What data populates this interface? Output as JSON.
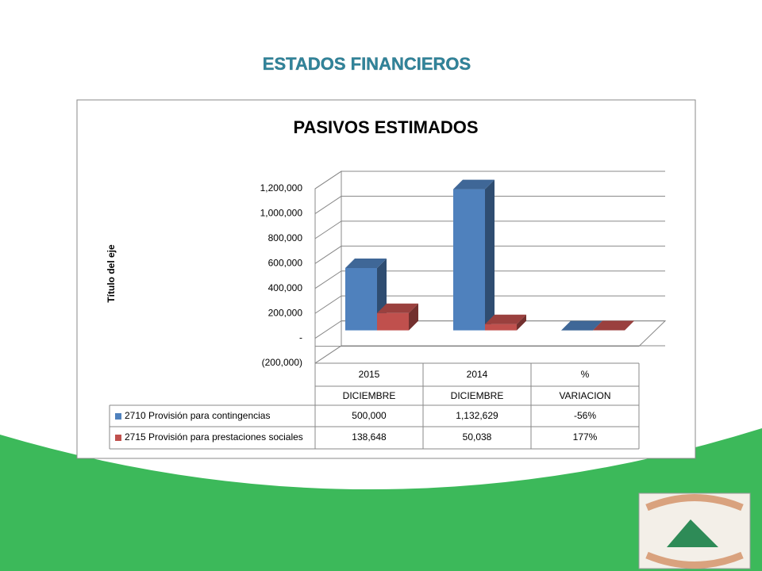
{
  "page_title": "ESTADOS FINANCIEROS",
  "chart_data": {
    "type": "bar",
    "title": "PASIVOS ESTIMADOS",
    "y_label": "Título del eje",
    "categories": [
      "2015",
      "2014",
      "%"
    ],
    "category_sublabels": [
      "DICIEMBRE",
      "DICIEMBRE",
      "VARIACION"
    ],
    "series": [
      {
        "name": "2710 Provisión para contingencias",
        "color": "#4f81bd",
        "values": [
          500000,
          1132629,
          -56
        ],
        "value_labels": [
          "500,000",
          "1,132,629",
          "-56%"
        ]
      },
      {
        "name": "2715 Provisión para prestaciones sociales",
        "color": "#c0504d",
        "values": [
          138648,
          50038,
          177
        ],
        "value_labels": [
          "138,648",
          "50,038",
          "177%"
        ]
      }
    ],
    "ylim": [
      -200000,
      1200000
    ],
    "yticks": [
      {
        "value": -200000,
        "label": "(200,000)"
      },
      {
        "value": 0,
        "label": "-"
      },
      {
        "value": 200000,
        "label": "200,000"
      },
      {
        "value": 400000,
        "label": "400,000"
      },
      {
        "value": 600000,
        "label": "600,000"
      },
      {
        "value": 800000,
        "label": "800,000"
      },
      {
        "value": 1000000,
        "label": "1,000,000"
      },
      {
        "value": 1200000,
        "label": "1,200,000"
      }
    ],
    "grid": true
  }
}
